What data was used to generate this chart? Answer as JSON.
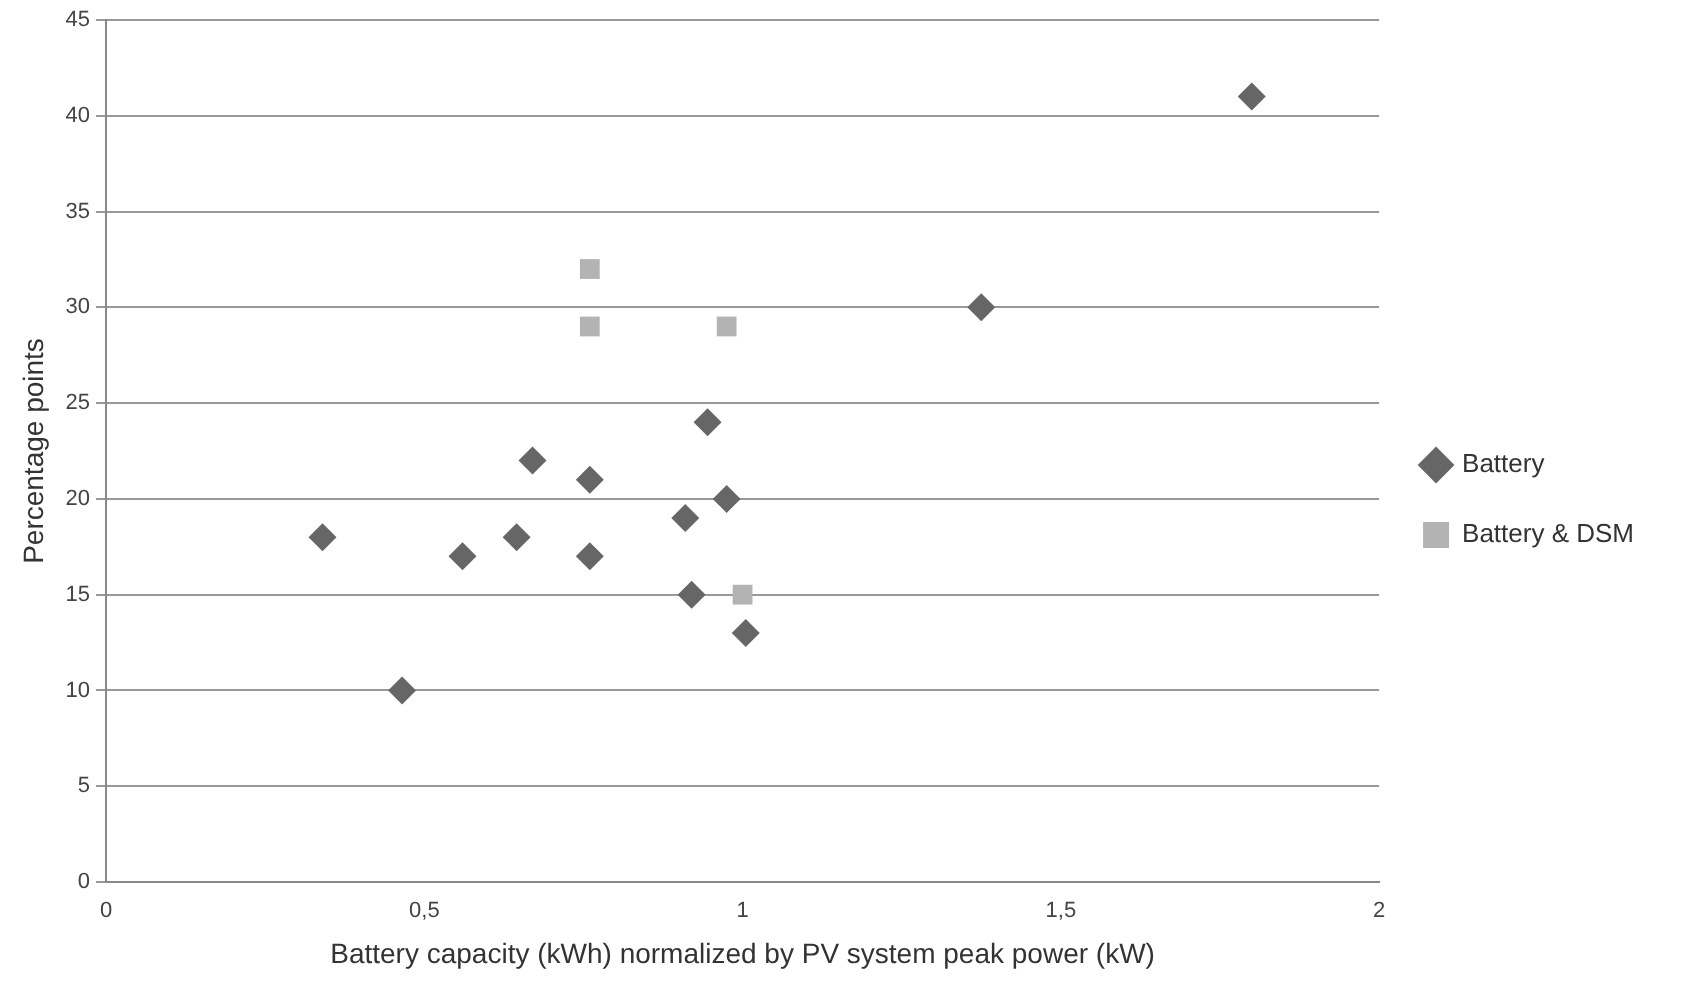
{
  "chart_data": {
    "type": "scatter",
    "xlabel": "Battery capacity (kWh) normalized by PV system peak power (kW)",
    "ylabel": "Percentage points",
    "xlim": [
      0,
      2
    ],
    "xticks": [
      0,
      {
        "value": 0.5,
        "label": "0,5"
      },
      1,
      {
        "value": 1.5,
        "label": "1,5"
      },
      2
    ],
    "ylim": [
      0,
      45
    ],
    "yticks": [
      0,
      5,
      10,
      15,
      20,
      25,
      30,
      35,
      40,
      45
    ],
    "grid": "y",
    "legend": "right",
    "series": [
      {
        "name": "Battery",
        "color": "#666666",
        "marker": "diamond",
        "x": [
          0.34,
          0.465,
          0.56,
          0.645,
          0.67,
          0.76,
          0.76,
          0.91,
          0.945,
          0.975,
          0.92,
          1.005,
          1.375,
          1.8
        ],
        "values": [
          18,
          10,
          17,
          18,
          22,
          21,
          17,
          19,
          24,
          20,
          15,
          13,
          30,
          41
        ]
      },
      {
        "name": "Battery & DSM",
        "color": "#b3b3b3",
        "marker": "square",
        "x": [
          0.76,
          0.76,
          0.975,
          1.0
        ],
        "values": [
          32,
          29,
          29,
          15
        ]
      }
    ]
  }
}
